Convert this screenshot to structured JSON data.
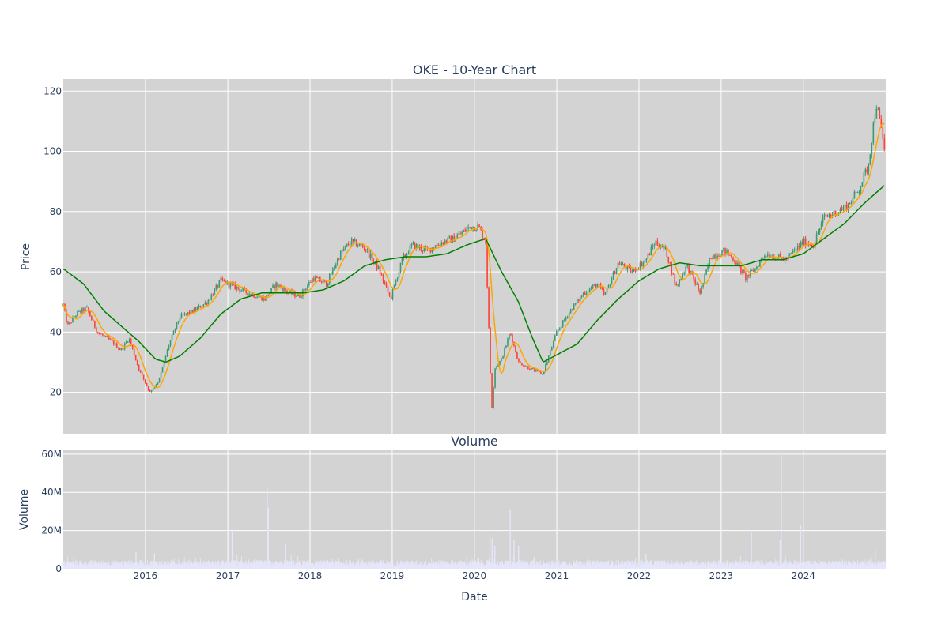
{
  "chart_data": [
    {
      "type": "candlestick",
      "title": "OKE - 10-Year Chart",
      "xlabel": "",
      "ylabel": "Price",
      "ylim": [
        6,
        124
      ],
      "yticks": [
        20,
        40,
        60,
        80,
        100,
        120
      ],
      "xticks": [
        "2016",
        "2017",
        "2018",
        "2019",
        "2020",
        "2021",
        "2022",
        "2023",
        "2024"
      ],
      "grid": true,
      "colors": {
        "increasing": "#3d9970",
        "decreasing": "#ff4136",
        "ma_short": "#ffa500",
        "ma_long": "#008000",
        "panel_bg": "#d3d3d3"
      },
      "price_path": [
        [
          "2015-01-01",
          49
        ],
        [
          "2015-01-20",
          42
        ],
        [
          "2015-03-01",
          46
        ],
        [
          "2015-04-15",
          48
        ],
        [
          "2015-06-01",
          40
        ],
        [
          "2015-08-01",
          37
        ],
        [
          "2015-09-15",
          34
        ],
        [
          "2015-10-20",
          38
        ],
        [
          "2015-12-01",
          28
        ],
        [
          "2016-01-20",
          20
        ],
        [
          "2016-03-01",
          24
        ],
        [
          "2016-04-15",
          36
        ],
        [
          "2016-06-01",
          45
        ],
        [
          "2016-08-01",
          47
        ],
        [
          "2016-10-01",
          50
        ],
        [
          "2016-12-01",
          57
        ],
        [
          "2017-02-01",
          55
        ],
        [
          "2017-04-01",
          53
        ],
        [
          "2017-06-15",
          51
        ],
        [
          "2017-08-01",
          56
        ],
        [
          "2017-10-01",
          53
        ],
        [
          "2017-11-15",
          52
        ],
        [
          "2018-01-15",
          58
        ],
        [
          "2018-03-15",
          56
        ],
        [
          "2018-05-15",
          66
        ],
        [
          "2018-07-01",
          70
        ],
        [
          "2018-09-01",
          68
        ],
        [
          "2018-11-01",
          61
        ],
        [
          "2018-12-24",
          51
        ],
        [
          "2019-02-15",
          64
        ],
        [
          "2019-04-01",
          69
        ],
        [
          "2019-06-01",
          67
        ],
        [
          "2019-08-15",
          70
        ],
        [
          "2019-10-01",
          71
        ],
        [
          "2019-12-15",
          75
        ],
        [
          "2020-01-20",
          75
        ],
        [
          "2020-02-20",
          70
        ],
        [
          "2020-03-18",
          14
        ],
        [
          "2020-04-01",
          28
        ],
        [
          "2020-05-01",
          31
        ],
        [
          "2020-06-08",
          40
        ],
        [
          "2020-07-15",
          30
        ],
        [
          "2020-09-01",
          28
        ],
        [
          "2020-10-30",
          26
        ],
        [
          "2021-01-01",
          40
        ],
        [
          "2021-03-01",
          47
        ],
        [
          "2021-05-01",
          53
        ],
        [
          "2021-07-01",
          56
        ],
        [
          "2021-08-01",
          52
        ],
        [
          "2021-10-01",
          63
        ],
        [
          "2021-12-01",
          60
        ],
        [
          "2022-02-01",
          64
        ],
        [
          "2022-03-15",
          70
        ],
        [
          "2022-05-01",
          67
        ],
        [
          "2022-06-15",
          55
        ],
        [
          "2022-08-01",
          62
        ],
        [
          "2022-09-30",
          53
        ],
        [
          "2022-11-15",
          65
        ],
        [
          "2023-01-15",
          67
        ],
        [
          "2023-03-01",
          64
        ],
        [
          "2023-04-20",
          58
        ],
        [
          "2023-06-01",
          61
        ],
        [
          "2023-07-15",
          66
        ],
        [
          "2023-09-01",
          65
        ],
        [
          "2023-10-15",
          64
        ],
        [
          "2024-01-01",
          70
        ],
        [
          "2024-02-15",
          69
        ],
        [
          "2024-04-01",
          78
        ],
        [
          "2024-06-01",
          80
        ],
        [
          "2024-07-15",
          82
        ],
        [
          "2024-09-01",
          87
        ],
        [
          "2024-10-15",
          95
        ],
        [
          "2024-11-20",
          116
        ],
        [
          "2024-12-31",
          99
        ]
      ],
      "ma_long_path": [
        [
          "2015-01-01",
          61
        ],
        [
          "2015-04-01",
          56
        ],
        [
          "2015-07-01",
          47
        ],
        [
          "2015-09-15",
          42
        ],
        [
          "2015-12-01",
          37
        ],
        [
          "2016-02-15",
          31
        ],
        [
          "2016-04-01",
          30
        ],
        [
          "2016-06-01",
          32
        ],
        [
          "2016-09-01",
          38
        ],
        [
          "2016-12-01",
          46
        ],
        [
          "2017-03-01",
          51
        ],
        [
          "2017-06-01",
          53
        ],
        [
          "2017-09-01",
          53
        ],
        [
          "2017-12-01",
          53
        ],
        [
          "2018-03-01",
          54
        ],
        [
          "2018-06-01",
          57
        ],
        [
          "2018-09-01",
          62
        ],
        [
          "2018-12-01",
          64
        ],
        [
          "2019-03-01",
          65
        ],
        [
          "2019-06-01",
          65
        ],
        [
          "2019-09-01",
          66
        ],
        [
          "2019-12-01",
          69
        ],
        [
          "2020-02-20",
          71
        ],
        [
          "2020-05-01",
          60
        ],
        [
          "2020-07-15",
          50
        ],
        [
          "2020-09-15",
          38
        ],
        [
          "2020-11-01",
          30
        ],
        [
          "2021-01-15",
          33
        ],
        [
          "2021-04-01",
          36
        ],
        [
          "2021-07-01",
          44
        ],
        [
          "2021-10-01",
          51
        ],
        [
          "2022-01-01",
          57
        ],
        [
          "2022-04-01",
          61
        ],
        [
          "2022-07-01",
          63
        ],
        [
          "2022-10-01",
          62
        ],
        [
          "2023-01-01",
          62
        ],
        [
          "2023-04-01",
          62
        ],
        [
          "2023-07-01",
          64
        ],
        [
          "2023-10-01",
          64
        ],
        [
          "2024-01-01",
          66
        ],
        [
          "2024-04-01",
          71
        ],
        [
          "2024-07-01",
          76
        ],
        [
          "2024-10-01",
          83
        ],
        [
          "2024-12-31",
          89
        ]
      ]
    },
    {
      "type": "bar",
      "title": "Volume",
      "xlabel": "Date",
      "ylabel": "Volume",
      "ylim": [
        0,
        62000000
      ],
      "yticks": [
        0,
        20000000,
        40000000,
        60000000
      ],
      "ytick_labels": [
        "0",
        "20M",
        "40M",
        "60M"
      ],
      "xticks": [
        "2016",
        "2017",
        "2018",
        "2019",
        "2020",
        "2021",
        "2022",
        "2023",
        "2024"
      ],
      "grid": true,
      "bar_color": "#e6e6fa",
      "baseline_range": [
        1500000,
        4500000
      ],
      "spikes": [
        [
          "2015-11-20",
          9000000
        ],
        [
          "2016-02-10",
          8000000
        ],
        [
          "2017-01-20",
          20000000
        ],
        [
          "2017-06-25",
          42000000
        ],
        [
          "2017-06-30",
          32000000
        ],
        [
          "2017-09-15",
          13000000
        ],
        [
          "2020-03-10",
          18000000
        ],
        [
          "2020-03-20",
          16000000
        ],
        [
          "2020-04-01",
          12000000
        ],
        [
          "2020-06-08",
          31000000
        ],
        [
          "2020-06-25",
          15000000
        ],
        [
          "2020-07-15",
          12000000
        ],
        [
          "2022-02-01",
          8000000
        ],
        [
          "2023-05-15",
          20000000
        ],
        [
          "2023-09-25",
          60000000
        ],
        [
          "2023-09-20",
          15000000
        ],
        [
          "2023-12-20",
          23000000
        ],
        [
          "2024-11-15",
          10000000
        ]
      ]
    }
  ]
}
